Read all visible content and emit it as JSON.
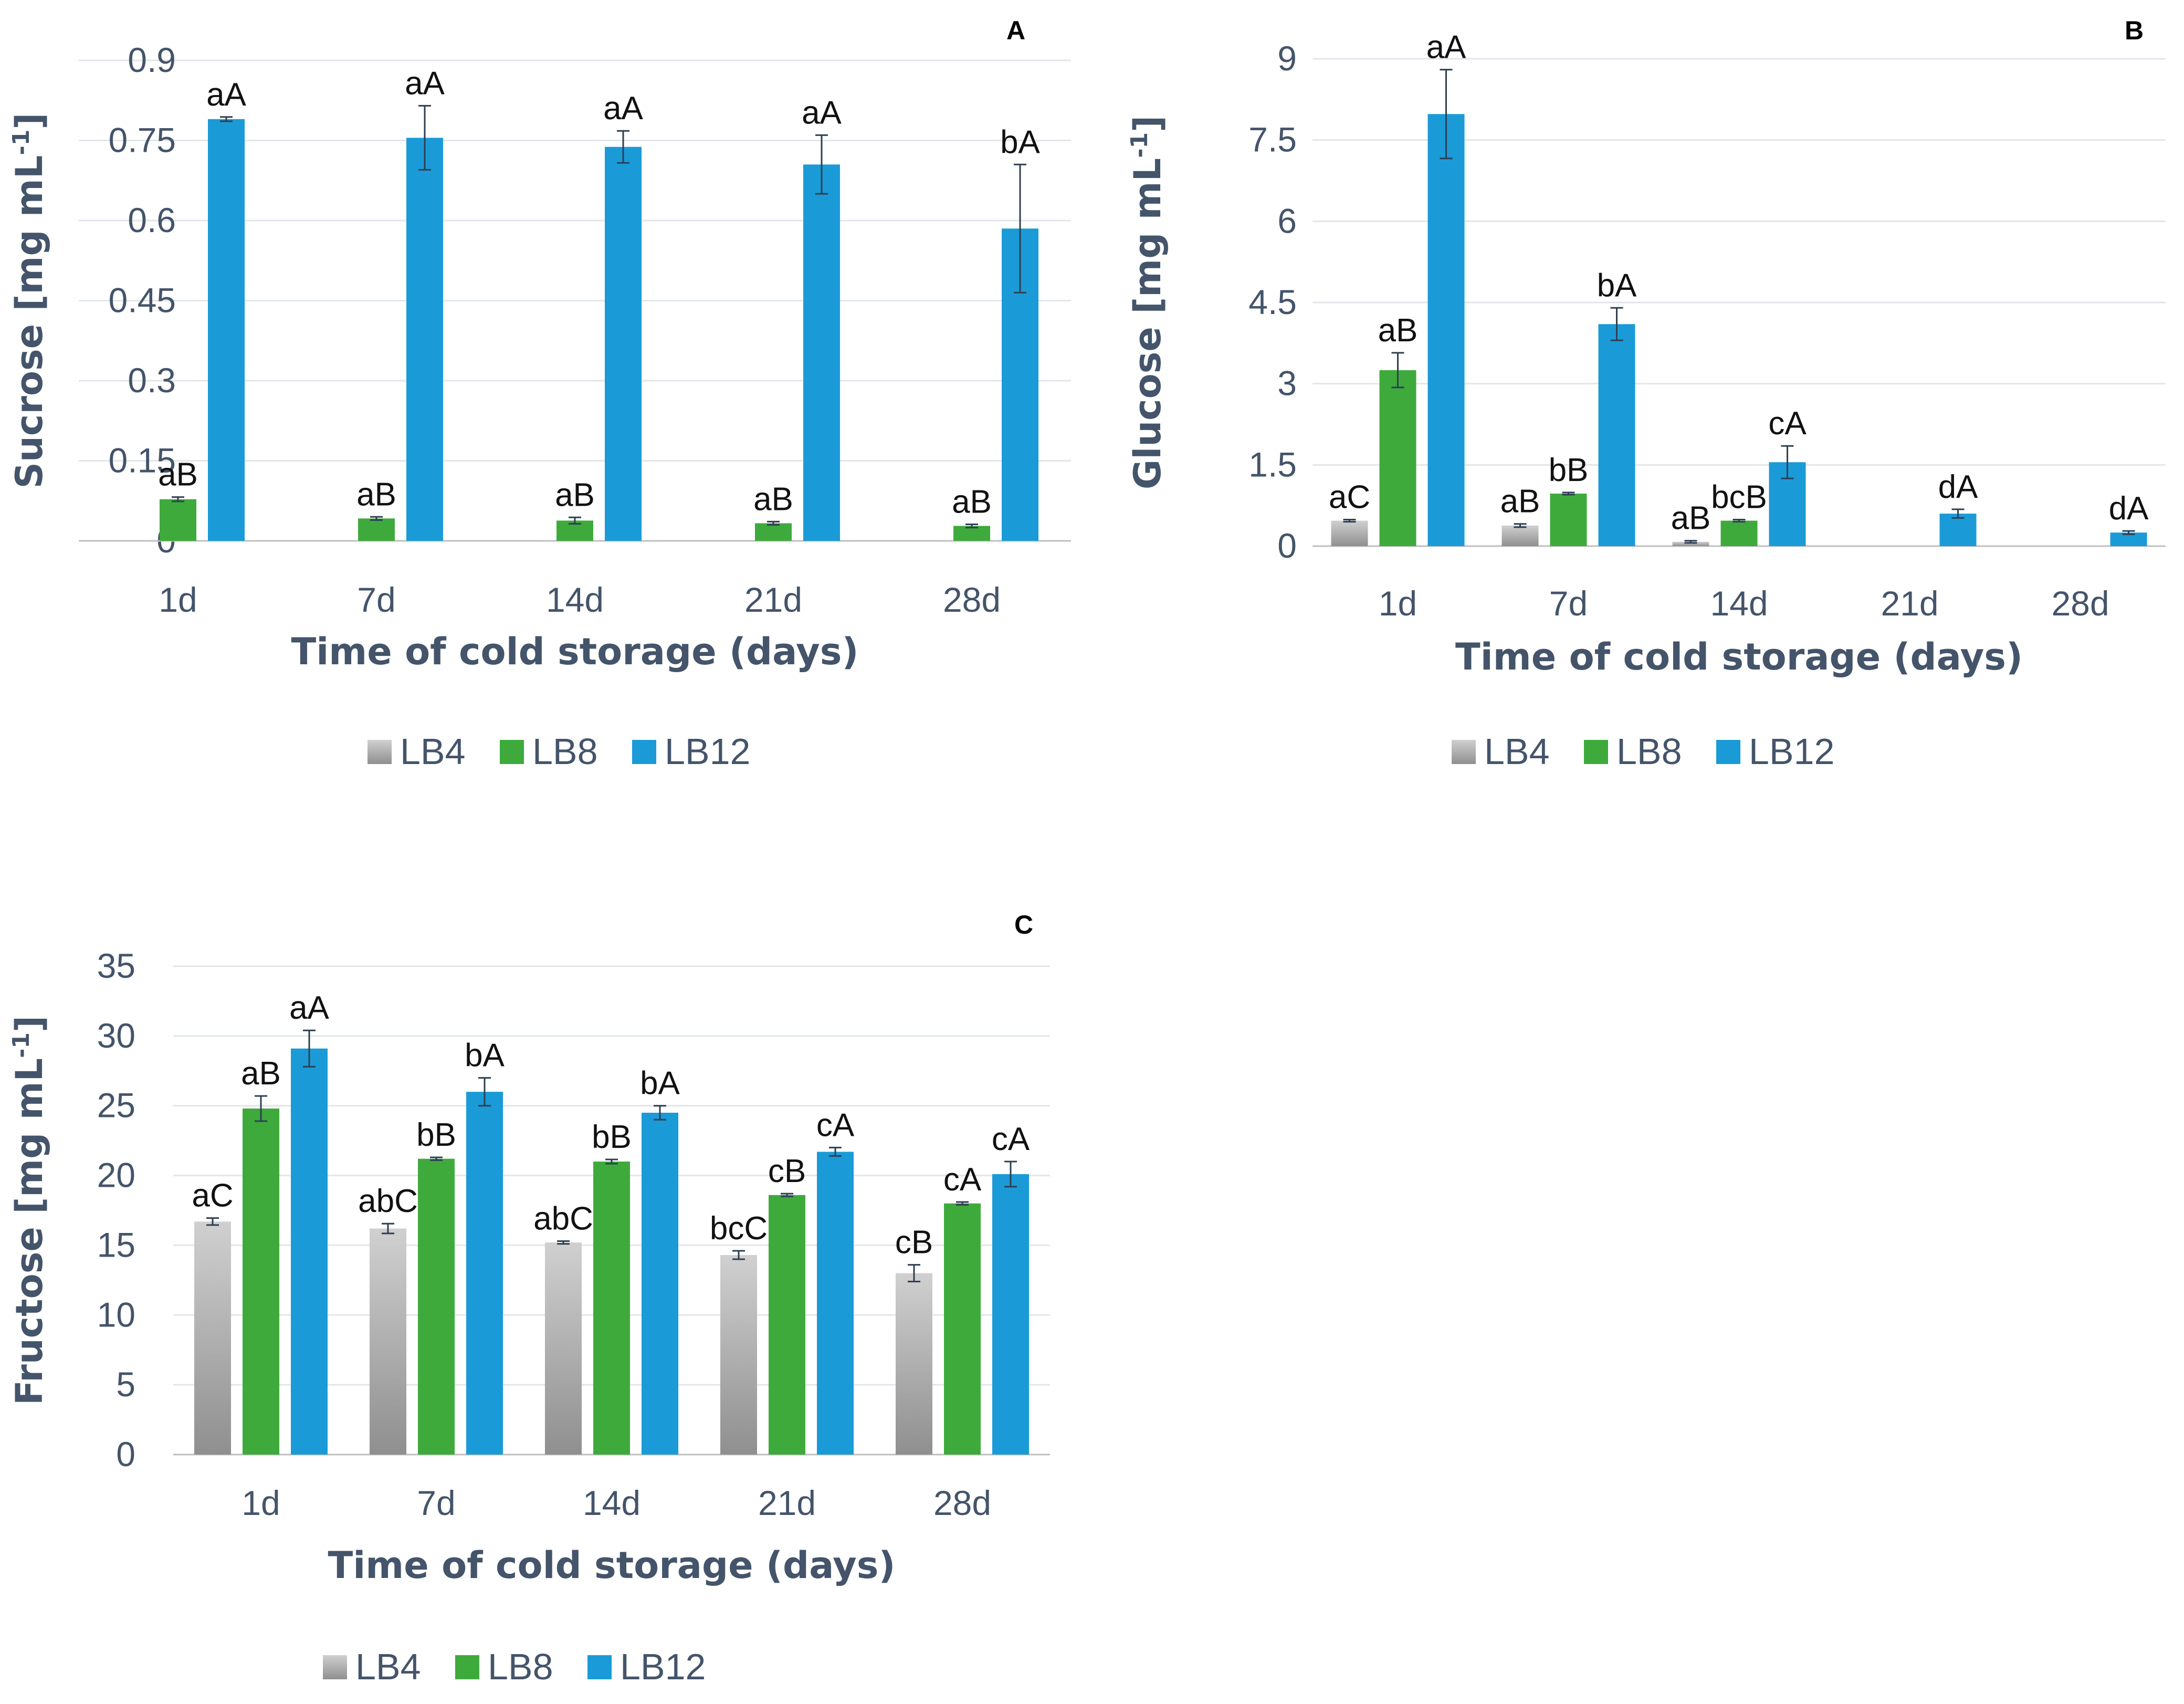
{
  "colors": {
    "text": "#44546A",
    "grid": "#E2E6EA",
    "axis": "#BFBFBF",
    "LB4": "#A6A6A6",
    "LB8": "#3EAA3C",
    "LB12": "#1A9BD7",
    "errorbar": "#2E3F52",
    "sig": "#111111",
    "panel_letter": "#000000"
  },
  "series_names": [
    "LB4",
    "LB8",
    "LB12"
  ],
  "chart_data": [
    {
      "type": "bar",
      "panel": "A",
      "title": "",
      "xlabel": "Time of cold storage (days)",
      "ylabel": "Sucrose [mg mL",
      "ylabel_sup": "-1",
      "ylabel_end": "]",
      "ylim": [
        0,
        0.9
      ],
      "yticks": [
        "0",
        "0.15",
        "0.3",
        "0.45",
        "0.6",
        "0.75",
        "0.9"
      ],
      "categories": [
        "1d",
        "7d",
        "14d",
        "21d",
        "28d"
      ],
      "series": [
        {
          "name": "LB4",
          "values": [
            null,
            null,
            null,
            null,
            null
          ],
          "errors": [
            null,
            null,
            null,
            null,
            null
          ],
          "labels": [
            "",
            "",
            "",
            "",
            ""
          ]
        },
        {
          "name": "LB8",
          "values": [
            0.078,
            0.042,
            0.038,
            0.033,
            0.028
          ],
          "errors": [
            0.004,
            0.003,
            0.006,
            0.003,
            0.003
          ],
          "labels": [
            "aB",
            "aB",
            "aB",
            "aB",
            "aB"
          ]
        },
        {
          "name": "LB12",
          "values": [
            0.79,
            0.755,
            0.738,
            0.705,
            0.585
          ],
          "errors": [
            0.004,
            0.06,
            0.03,
            0.055,
            0.12
          ],
          "labels": [
            "aA",
            "aA",
            "aA",
            "aA",
            "bA"
          ]
        }
      ],
      "legend": [
        "LB4",
        "LB8",
        "LB12"
      ]
    },
    {
      "type": "bar",
      "panel": "B",
      "title": "",
      "xlabel": "Time of cold storage (days)",
      "ylabel": "Glucose  [mg mL",
      "ylabel_sup": "-1",
      "ylabel_end": "]",
      "ylim": [
        0,
        9
      ],
      "yticks": [
        "0",
        "1.5",
        "3",
        "4.5",
        "6",
        "7.5",
        "9"
      ],
      "categories": [
        "1d",
        "7d",
        "14d",
        "21d",
        "28d"
      ],
      "series": [
        {
          "name": "LB4",
          "values": [
            0.47,
            0.38,
            0.08,
            null,
            null
          ],
          "errors": [
            0.02,
            0.03,
            0.02,
            null,
            null
          ],
          "labels": [
            "aC",
            "aB",
            "aB",
            "",
            ""
          ]
        },
        {
          "name": "LB8",
          "values": [
            3.25,
            0.97,
            0.47,
            null,
            null
          ],
          "errors": [
            0.32,
            0.02,
            0.02,
            null,
            null
          ],
          "labels": [
            "aB",
            "bB",
            "bcB",
            "",
            ""
          ]
        },
        {
          "name": "LB12",
          "values": [
            7.98,
            4.1,
            1.55,
            0.6,
            0.25
          ],
          "errors": [
            0.82,
            0.3,
            0.3,
            0.08,
            0.03
          ],
          "labels": [
            "aA",
            "bA",
            "cA",
            "dA",
            "dA"
          ]
        }
      ],
      "legend": [
        "LB4",
        "LB8",
        "LB12"
      ]
    },
    {
      "type": "bar",
      "panel": "C",
      "title": "",
      "xlabel": "Time of cold storage (days)",
      "ylabel": "Fructose  [mg mL",
      "ylabel_sup": "-1",
      "ylabel_end": "]",
      "ylim": [
        0,
        35
      ],
      "yticks": [
        "0",
        "5",
        "10",
        "15",
        "20",
        "25",
        "30",
        "35"
      ],
      "categories": [
        "1d",
        "7d",
        "14d",
        "21d",
        "28d"
      ],
      "series": [
        {
          "name": "LB4",
          "values": [
            16.7,
            16.2,
            15.2,
            14.3,
            13.0
          ],
          "errors": [
            0.25,
            0.35,
            0.1,
            0.3,
            0.6
          ],
          "labels": [
            "aC",
            "abC",
            "abC",
            "bcC",
            "cB"
          ]
        },
        {
          "name": "LB8",
          "values": [
            24.8,
            21.2,
            21.0,
            18.6,
            18.0
          ],
          "errors": [
            0.9,
            0.1,
            0.15,
            0.1,
            0.1
          ],
          "labels": [
            "aB",
            "bB",
            "bB",
            "cB",
            "cA"
          ]
        },
        {
          "name": "LB12",
          "values": [
            29.1,
            26.0,
            24.5,
            21.7,
            20.1
          ],
          "errors": [
            1.3,
            1.0,
            0.5,
            0.3,
            0.9
          ],
          "labels": [
            "aA",
            "bA",
            "bA",
            "cA",
            "cA"
          ]
        }
      ],
      "legend": [
        "LB4",
        "LB8",
        "LB12"
      ]
    }
  ]
}
